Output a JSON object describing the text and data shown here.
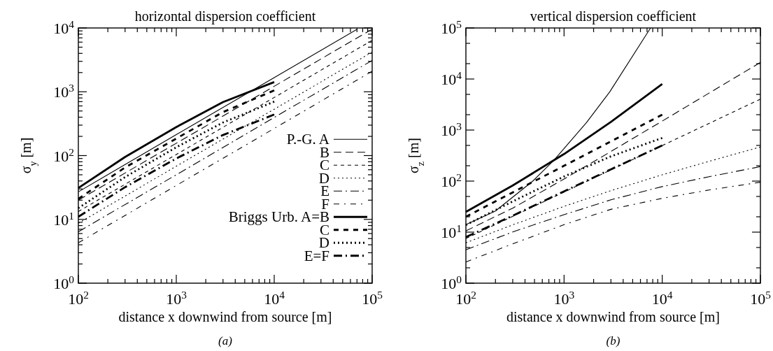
{
  "chart_data": [
    {
      "type": "line",
      "title": "horizontal dispersion coefficient",
      "xlabel": "distance x downwind from source [m]",
      "ylabel": "σ$_{y}$ [m]",
      "annotations": [
        "(a)"
      ],
      "log": "xy",
      "legend": "right",
      "xlim": [
        100,
        100000
      ],
      "ylim": [
        1,
        10000
      ],
      "xticks": [
        {
          "value": 100,
          "label": "10$^{2}$"
        },
        {
          "value": 200,
          "label": null
        },
        {
          "value": 300,
          "label": null
        },
        {
          "value": 400,
          "label": null
        },
        {
          "value": 500,
          "label": null
        },
        {
          "value": 600,
          "label": null
        },
        {
          "value": 700,
          "label": null
        },
        {
          "value": 800,
          "label": null
        },
        {
          "value": 900,
          "label": null
        },
        {
          "value": 1000,
          "label": "10$^{3}$"
        },
        {
          "value": 2000,
          "label": null
        },
        {
          "value": 3000,
          "label": null
        },
        {
          "value": 4000,
          "label": null
        },
        {
          "value": 5000,
          "label": null
        },
        {
          "value": 6000,
          "label": null
        },
        {
          "value": 7000,
          "label": null
        },
        {
          "value": 8000,
          "label": null
        },
        {
          "value": 9000,
          "label": null
        },
        {
          "value": 10000,
          "label": "10$^{4}$"
        },
        {
          "value": 20000,
          "label": null
        },
        {
          "value": 30000,
          "label": null
        },
        {
          "value": 40000,
          "label": null
        },
        {
          "value": 50000,
          "label": null
        },
        {
          "value": 60000,
          "label": null
        },
        {
          "value": 70000,
          "label": null
        },
        {
          "value": 80000,
          "label": null
        },
        {
          "value": 90000,
          "label": null
        },
        {
          "value": 100000,
          "label": "10$^{5}$"
        }
      ],
      "yticks": [
        {
          "value": 1,
          "label": "10$^{0}$"
        },
        {
          "value": 2,
          "label": null
        },
        {
          "value": 3,
          "label": null
        },
        {
          "value": 4,
          "label": null
        },
        {
          "value": 5,
          "label": null
        },
        {
          "value": 6,
          "label": null
        },
        {
          "value": 7,
          "label": null
        },
        {
          "value": 8,
          "label": null
        },
        {
          "value": 9,
          "label": null
        },
        {
          "value": 10,
          "label": "10$^{1}$"
        },
        {
          "value": 20,
          "label": null
        },
        {
          "value": 30,
          "label": null
        },
        {
          "value": 40,
          "label": null
        },
        {
          "value": 50,
          "label": null
        },
        {
          "value": 60,
          "label": null
        },
        {
          "value": 70,
          "label": null
        },
        {
          "value": 80,
          "label": null
        },
        {
          "value": 90,
          "label": null
        },
        {
          "value": 100,
          "label": "10$^{2}$"
        },
        {
          "value": 200,
          "label": null
        },
        {
          "value": 300,
          "label": null
        },
        {
          "value": 400,
          "label": null
        },
        {
          "value": 500,
          "label": null
        },
        {
          "value": 600,
          "label": null
        },
        {
          "value": 700,
          "label": null
        },
        {
          "value": 800,
          "label": null
        },
        {
          "value": 900,
          "label": null
        },
        {
          "value": 1000,
          "label": "10$^{3}$"
        },
        {
          "value": 2000,
          "label": null
        },
        {
          "value": 3000,
          "label": null
        },
        {
          "value": 4000,
          "label": null
        },
        {
          "value": 5000,
          "label": null
        },
        {
          "value": 6000,
          "label": null
        },
        {
          "value": 7000,
          "label": null
        },
        {
          "value": 8000,
          "label": null
        },
        {
          "value": 9000,
          "label": null
        },
        {
          "value": 10000,
          "label": "10$^{4}$"
        }
      ],
      "series": [
        {
          "name": "P.-G. A",
          "color": "#000000",
          "line_style": "solid",
          "x": [
            100,
            1000,
            10000,
            70000
          ],
          "values": [
            27,
            213,
            1670,
            9500
          ]
        },
        {
          "name": "B",
          "color": "#000000",
          "line_style": "dashed",
          "x": [
            100,
            1000,
            10000,
            100000
          ],
          "values": [
            20,
            156,
            1220,
            9600
          ]
        },
        {
          "name": "C",
          "color": "#000000",
          "line_style": "dashed",
          "x": [
            100,
            1000,
            10000,
            100000
          ],
          "values": [
            13.3,
            104,
            815,
            6400
          ]
        },
        {
          "name": "D",
          "color": "#000000",
          "line_style": "dotted",
          "x": [
            100,
            1000,
            10000,
            100000
          ],
          "values": [
            8.7,
            68,
            533,
            4200
          ]
        },
        {
          "name": "E",
          "color": "#000000",
          "line_style": "dashdot",
          "x": [
            100,
            1000,
            10000,
            100000
          ],
          "values": [
            6.4,
            50,
            396,
            3100
          ]
        },
        {
          "name": "F",
          "color": "#000000",
          "line_style": "dashdot",
          "x": [
            100,
            1000,
            10000,
            100000
          ],
          "values": [
            4.3,
            34,
            266,
            2100
          ]
        },
        {
          "name": "Briggs Urb. A=B",
          "color": "#000000",
          "line_style": "solid",
          "x": [
            100,
            300,
            1000,
            3000,
            10000
          ],
          "values": [
            31,
            95,
            280,
            690,
            1420
          ]
        },
        {
          "name": "C",
          "color": "#000000",
          "line_style": "dashed",
          "x": [
            100,
            300,
            1000,
            3000,
            10000
          ],
          "values": [
            21,
            65,
            185,
            480,
            1050
          ]
        },
        {
          "name": "D",
          "color": "#000000",
          "line_style": "dotted",
          "x": [
            100,
            300,
            1000,
            3000,
            10000
          ],
          "values": [
            15,
            46,
            135,
            330,
            700
          ]
        },
        {
          "name": "E=F",
          "color": "#000000",
          "line_style": "dashdot",
          "x": [
            100,
            300,
            1000,
            3000,
            10000
          ],
          "values": [
            11,
            32,
            90,
            210,
            440
          ]
        }
      ]
    },
    {
      "type": "line",
      "title": "vertical dispersion coefficient",
      "xlabel": "distance x downwind from source [m]",
      "ylabel": "σ$_{z}$ [m]",
      "annotations": [
        "(b)"
      ],
      "log": "xy",
      "xlim": [
        100,
        100000
      ],
      "ylim": [
        1,
        100000
      ],
      "xticks": [
        {
          "value": 100,
          "label": "10$^{2}$"
        },
        {
          "value": 200,
          "label": null
        },
        {
          "value": 300,
          "label": null
        },
        {
          "value": 400,
          "label": null
        },
        {
          "value": 500,
          "label": null
        },
        {
          "value": 600,
          "label": null
        },
        {
          "value": 700,
          "label": null
        },
        {
          "value": 800,
          "label": null
        },
        {
          "value": 900,
          "label": null
        },
        {
          "value": 1000,
          "label": "10$^{3}$"
        },
        {
          "value": 2000,
          "label": null
        },
        {
          "value": 3000,
          "label": null
        },
        {
          "value": 4000,
          "label": null
        },
        {
          "value": 5000,
          "label": null
        },
        {
          "value": 6000,
          "label": null
        },
        {
          "value": 7000,
          "label": null
        },
        {
          "value": 8000,
          "label": null
        },
        {
          "value": 9000,
          "label": null
        },
        {
          "value": 10000,
          "label": "10$^{4}$"
        },
        {
          "value": 20000,
          "label": null
        },
        {
          "value": 30000,
          "label": null
        },
        {
          "value": 40000,
          "label": null
        },
        {
          "value": 50000,
          "label": null
        },
        {
          "value": 60000,
          "label": null
        },
        {
          "value": 70000,
          "label": null
        },
        {
          "value": 80000,
          "label": null
        },
        {
          "value": 90000,
          "label": null
        },
        {
          "value": 100000,
          "label": "10$^{5}$"
        }
      ],
      "yticks": [
        {
          "value": 1,
          "label": "10$^{0}$"
        },
        {
          "value": 2,
          "label": null
        },
        {
          "value": 5,
          "label": null
        },
        {
          "value": 10,
          "label": "10$^{1}$"
        },
        {
          "value": 20,
          "label": null
        },
        {
          "value": 50,
          "label": null
        },
        {
          "value": 100,
          "label": "10$^{2}$"
        },
        {
          "value": 200,
          "label": null
        },
        {
          "value": 500,
          "label": null
        },
        {
          "value": 1000,
          "label": "10$^{3}$"
        },
        {
          "value": 2000,
          "label": null
        },
        {
          "value": 5000,
          "label": null
        },
        {
          "value": 10000,
          "label": "10$^{4}$"
        },
        {
          "value": 20000,
          "label": null
        },
        {
          "value": 50000,
          "label": null
        },
        {
          "value": 100000,
          "label": "10$^{5}$"
        }
      ],
      "series": [
        {
          "color": "#000000",
          "line_style": "solid",
          "x": [
            100,
            200,
            480,
            786,
            1690,
            2920,
            7600
          ],
          "values": [
            14,
            26,
            100,
            254,
            1400,
            5600,
            100000
          ]
        },
        {
          "color": "#000000",
          "line_style": "dashed",
          "x": [
            100,
            300,
            1000,
            3000,
            10000,
            30000,
            100000
          ],
          "values": [
            10.6,
            29.5,
            110,
            380,
            1500,
            5300,
            21100
          ]
        },
        {
          "color": "#000000",
          "line_style": "dashed",
          "x": [
            100,
            300,
            1000,
            3000,
            10000,
            30000,
            100000
          ],
          "values": [
            7.5,
            20.4,
            61,
            166,
            497,
            1350,
            4040
          ]
        },
        {
          "color": "#000000",
          "line_style": "dotted",
          "x": [
            100,
            300,
            1000,
            3000,
            10000,
            30000,
            100000
          ],
          "values": [
            6.2,
            13.9,
            32,
            65,
            133,
            244,
            466
          ]
        },
        {
          "color": "#000000",
          "line_style": "dashdot",
          "x": [
            100,
            300,
            1000,
            3000,
            10000,
            30000,
            100000
          ],
          "values": [
            4.5,
            10.1,
            22,
            43,
            78,
            122,
            192
          ]
        },
        {
          "color": "#000000",
          "line_style": "dashdot",
          "x": [
            100,
            300,
            1000,
            3000,
            10000,
            30000,
            100000
          ],
          "values": [
            2.6,
            5.9,
            14,
            28,
            46,
            67,
            95
          ]
        },
        {
          "color": "#000000",
          "line_style": "solid",
          "x": [
            100,
            300,
            1000,
            3000,
            10000
          ],
          "values": [
            25,
            82,
            339,
            1440,
            7960
          ]
        },
        {
          "color": "#000000",
          "line_style": "dashed",
          "x": [
            100,
            300,
            1000,
            3000,
            10000
          ],
          "values": [
            20,
            60,
            200,
            600,
            2000
          ]
        },
        {
          "color": "#000000",
          "line_style": "dotted",
          "x": [
            100,
            300,
            1000,
            3000,
            10000
          ],
          "values": [
            13.8,
            40,
            123,
            305,
            700
          ]
        },
        {
          "color": "#000000",
          "line_style": "dashdot",
          "x": [
            100,
            300,
            1000,
            3000,
            10000
          ],
          "values": [
            8,
            21,
            63,
            170,
            500
          ]
        }
      ]
    }
  ]
}
